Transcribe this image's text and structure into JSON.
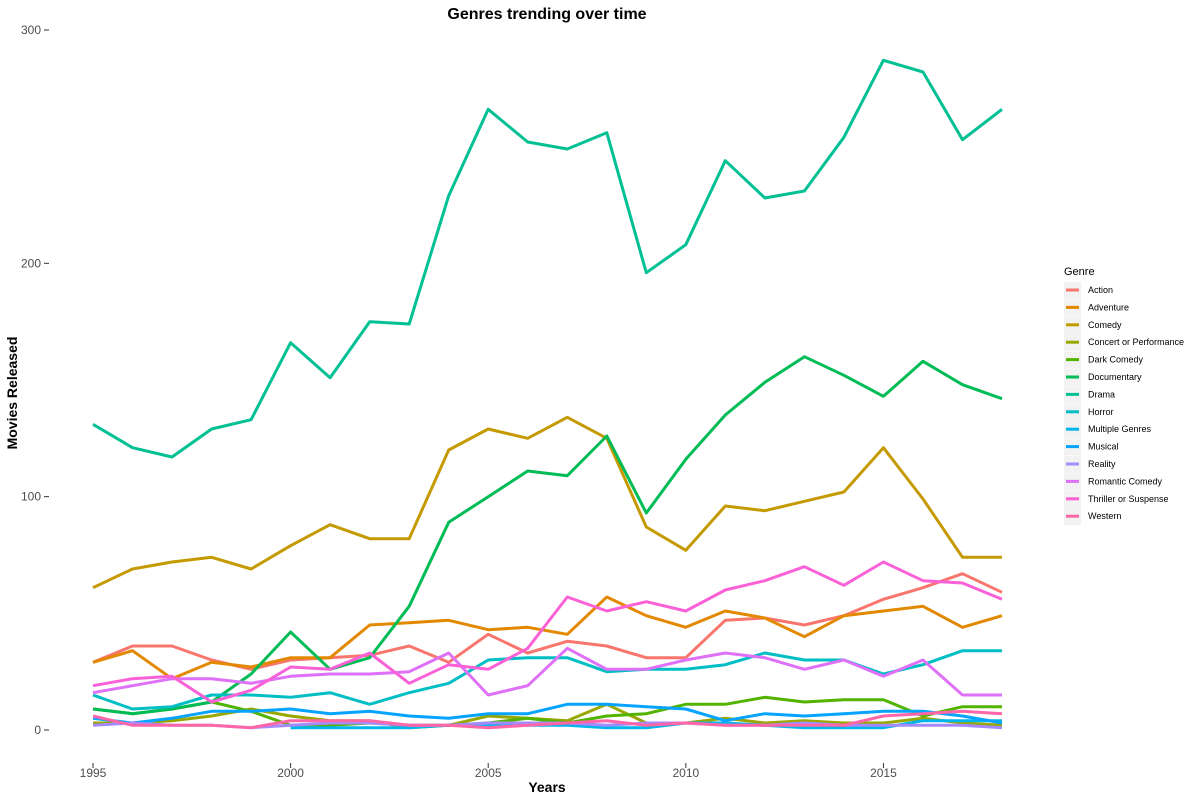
{
  "chart_data": {
    "type": "line",
    "title": "Genres trending over time",
    "xlabel": "Years",
    "ylabel": "Movies Released",
    "xlim": [
      1995,
      2018
    ],
    "ylim": [
      0,
      300
    ],
    "x_ticks": [
      1995,
      2000,
      2005,
      2010,
      2015
    ],
    "y_ticks": [
      0,
      100,
      200,
      300
    ],
    "grid": false,
    "legend": {
      "title": "Genre",
      "position": "right"
    },
    "x": [
      1995,
      1996,
      1997,
      1998,
      1999,
      2000,
      2001,
      2002,
      2003,
      2004,
      2005,
      2006,
      2007,
      2008,
      2009,
      2010,
      2011,
      2012,
      2013,
      2014,
      2015,
      2016,
      2017,
      2018
    ],
    "series": [
      {
        "name": "Action",
        "color": "#F8766D",
        "values": [
          29,
          36,
          36,
          30,
          26,
          30,
          31,
          32,
          36,
          29,
          41,
          33,
          38,
          36,
          31,
          31,
          47,
          48,
          45,
          49,
          56,
          61,
          67,
          59
        ]
      },
      {
        "name": "Adventure",
        "color": "#E38900",
        "values": [
          29,
          34,
          22,
          29,
          27,
          31,
          31,
          45,
          46,
          47,
          43,
          44,
          41,
          57,
          49,
          44,
          51,
          48,
          40,
          49,
          51,
          53,
          44,
          49
        ]
      },
      {
        "name": "Comedy",
        "color": "#C49A00",
        "values": [
          61,
          69,
          72,
          74,
          69,
          79,
          88,
          82,
          82,
          120,
          129,
          125,
          134,
          125,
          87,
          77,
          96,
          94,
          98,
          102,
          121,
          99,
          74,
          74
        ]
      },
      {
        "name": "Concert or Performance",
        "color": "#99A800",
        "values": [
          3,
          3,
          4,
          6,
          9,
          6,
          4,
          4,
          1,
          2,
          6,
          5,
          4,
          11,
          3,
          3,
          5,
          3,
          4,
          3,
          3,
          5,
          3,
          2
        ]
      },
      {
        "name": "Dark Comedy",
        "color": "#53B400",
        "values": [
          9,
          7,
          9,
          12,
          8,
          2,
          2,
          3,
          2,
          2,
          3,
          5,
          3,
          6,
          7,
          11,
          11,
          14,
          12,
          13,
          13,
          6,
          10,
          10
        ]
      },
      {
        "name": "Documentary",
        "color": "#00BC56",
        "values": [
          9,
          7,
          9,
          12,
          24,
          42,
          26,
          31,
          53,
          89,
          100,
          111,
          109,
          126,
          93,
          116,
          135,
          149,
          160,
          152,
          143,
          158,
          148,
          142
        ]
      },
      {
        "name": "Drama",
        "color": "#00C094",
        "values": [
          131,
          121,
          117,
          129,
          133,
          166,
          151,
          175,
          174,
          229,
          266,
          252,
          249,
          256,
          196,
          208,
          244,
          228,
          231,
          254,
          287,
          282,
          253,
          266
        ]
      },
      {
        "name": "Horror",
        "color": "#00BFC4",
        "values": [
          15,
          9,
          10,
          15,
          15,
          14,
          16,
          11,
          16,
          20,
          30,
          31,
          31,
          25,
          26,
          26,
          28,
          33,
          30,
          30,
          24,
          28,
          34,
          34
        ]
      },
      {
        "name": "Multiple Genres",
        "color": "#00B6EB",
        "values": [
          null,
          null,
          null,
          null,
          null,
          1,
          1,
          1,
          1,
          2,
          2,
          2,
          2,
          1,
          1,
          3,
          3,
          2,
          1,
          1,
          1,
          4,
          4,
          4
        ]
      },
      {
        "name": "Musical",
        "color": "#06A4FF",
        "values": [
          5,
          3,
          5,
          8,
          8,
          9,
          7,
          8,
          6,
          5,
          7,
          7,
          11,
          11,
          10,
          9,
          4,
          7,
          6,
          7,
          8,
          8,
          6,
          3
        ]
      },
      {
        "name": "Reality",
        "color": "#A58AFF",
        "values": [
          2,
          3,
          2,
          2,
          1,
          2,
          3,
          3,
          2,
          2,
          3,
          3,
          3,
          2,
          3,
          3,
          2,
          2,
          3,
          2,
          2,
          2,
          2,
          1
        ]
      },
      {
        "name": "Romantic Comedy",
        "color": "#DF70F8",
        "values": [
          16,
          19,
          22,
          22,
          20,
          23,
          24,
          24,
          25,
          33,
          15,
          19,
          35,
          26,
          26,
          30,
          33,
          31,
          26,
          30,
          23,
          30,
          15,
          15
        ]
      },
      {
        "name": "Thriller or Suspense",
        "color": "#FB61D7",
        "values": [
          19,
          22,
          23,
          12,
          17,
          27,
          26,
          33,
          20,
          28,
          26,
          35,
          57,
          51,
          55,
          51,
          60,
          64,
          70,
          62,
          72,
          64,
          63,
          56
        ]
      },
      {
        "name": "Western",
        "color": "#FF66A8",
        "values": [
          6,
          2,
          2,
          2,
          1,
          4,
          4,
          4,
          2,
          2,
          1,
          2,
          3,
          4,
          2,
          3,
          2,
          2,
          2,
          2,
          6,
          7,
          8,
          7
        ]
      }
    ]
  }
}
